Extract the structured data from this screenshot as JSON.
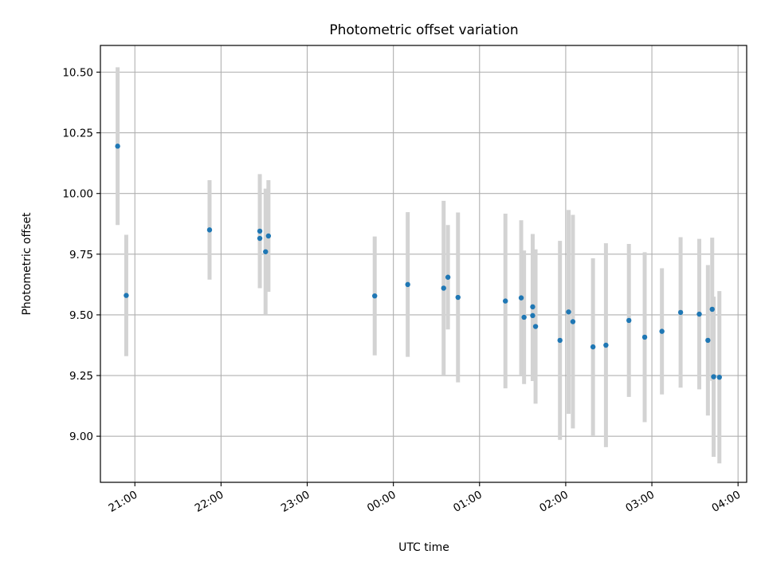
{
  "chart_data": {
    "type": "scatter",
    "title": "Photometric offset variation",
    "xlabel": "UTC time",
    "ylabel": "Photometric offset",
    "x_ticks": [
      "21:00",
      "22:00",
      "23:00",
      "00:00",
      "01:00",
      "02:00",
      "03:00",
      "04:00"
    ],
    "y_ticks": [
      "9.00",
      "9.25",
      "9.50",
      "9.75",
      "10.00",
      "10.25",
      "10.50"
    ],
    "xlim": [
      "20:36",
      "04:06"
    ],
    "ylim": [
      8.81,
      10.61
    ],
    "grid": true,
    "legend": "none",
    "colors": {
      "point": "#1f77b4",
      "errorbar": "#d3d3d3",
      "grid": "#b0b0b0"
    },
    "points": [
      {
        "time": "20:48",
        "offset": 10.195,
        "err": 0.325
      },
      {
        "time": "20:54",
        "offset": 9.58,
        "err": 0.25
      },
      {
        "time": "21:52",
        "offset": 9.85,
        "err": 0.205
      },
      {
        "time": "22:27",
        "offset": 9.845,
        "err": 0.235
      },
      {
        "time": "22:27",
        "offset": 9.815,
        "err": 0.205
      },
      {
        "time": "22:31",
        "offset": 9.76,
        "err": 0.26
      },
      {
        "time": "22:33",
        "offset": 9.825,
        "err": 0.23
      },
      {
        "time": "23:47",
        "offset": 9.578,
        "err": 0.245
      },
      {
        "time": "00:10",
        "offset": 9.625,
        "err": 0.298
      },
      {
        "time": "00:35",
        "offset": 9.61,
        "err": 0.36
      },
      {
        "time": "00:38",
        "offset": 9.655,
        "err": 0.215
      },
      {
        "time": "00:45",
        "offset": 9.572,
        "err": 0.35
      },
      {
        "time": "01:18",
        "offset": 9.557,
        "err": 0.36
      },
      {
        "time": "01:29",
        "offset": 9.57,
        "err": 0.32
      },
      {
        "time": "01:31",
        "offset": 9.49,
        "err": 0.275
      },
      {
        "time": "01:37",
        "offset": 9.533,
        "err": 0.3
      },
      {
        "time": "01:37",
        "offset": 9.497,
        "err": 0.27
      },
      {
        "time": "01:39",
        "offset": 9.452,
        "err": 0.318
      },
      {
        "time": "01:56",
        "offset": 9.395,
        "err": 0.41
      },
      {
        "time": "02:02",
        "offset": 9.512,
        "err": 0.42
      },
      {
        "time": "02:05",
        "offset": 9.472,
        "err": 0.44
      },
      {
        "time": "02:19",
        "offset": 9.368,
        "err": 0.365
      },
      {
        "time": "02:28",
        "offset": 9.375,
        "err": 0.42
      },
      {
        "time": "02:44",
        "offset": 9.477,
        "err": 0.315
      },
      {
        "time": "02:55",
        "offset": 9.408,
        "err": 0.35
      },
      {
        "time": "03:07",
        "offset": 9.432,
        "err": 0.26
      },
      {
        "time": "03:20",
        "offset": 9.51,
        "err": 0.31
      },
      {
        "time": "03:33",
        "offset": 9.503,
        "err": 0.31
      },
      {
        "time": "03:39",
        "offset": 9.395,
        "err": 0.31
      },
      {
        "time": "03:42",
        "offset": 9.523,
        "err": 0.295
      },
      {
        "time": "03:43",
        "offset": 9.245,
        "err": 0.33
      },
      {
        "time": "03:47",
        "offset": 9.243,
        "err": 0.355
      }
    ]
  }
}
